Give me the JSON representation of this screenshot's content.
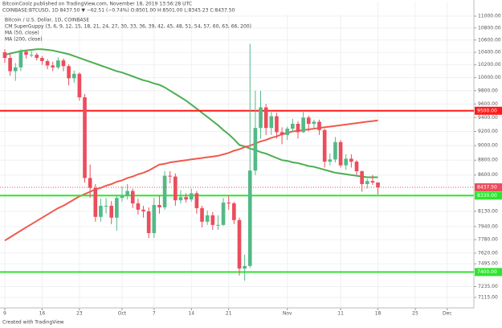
{
  "chart_data": {
    "type": "candlestick",
    "header": "BitcoinCoolz published on TradingView.com, November 18, 2019 13:56:28 UTC",
    "subheader": "COINBASE:BTCUSD, 1D 8437.50 ▼ −62.51 (−0.74%) O:8501.00 H:8501.00 L:8345.23 C:8437.50",
    "legend": [
      "Bitcoin / U.S. Dollar, 1D, COINBASE",
      "CM SuperGuppy (3, 6, 9, 12, 15, 18, 21, 24, 27, 30, 33, 36, 39, 42, 45, 48, 51, 54, 57, 60, 63, 66, 200)",
      "MA (50, close)",
      "MA (200, close)"
    ],
    "footer": "Created with TradingView",
    "up_color": "#53b987",
    "down_color": "#eb4d5c",
    "log_scale": true,
    "grid": true,
    "xlim": [
      -0.9,
      88
    ],
    "xticks": [
      {
        "value": 0,
        "label": "9"
      },
      {
        "value": 7,
        "label": "16"
      },
      {
        "value": 14,
        "label": "23"
      },
      {
        "value": 22,
        "label": "Oct"
      },
      {
        "value": 28,
        "label": "7"
      },
      {
        "value": 35,
        "label": "14"
      },
      {
        "value": 42,
        "label": "21"
      },
      {
        "value": 53,
        "label": "Nov"
      },
      {
        "value": 63,
        "label": "11"
      },
      {
        "value": 70,
        "label": "18"
      },
      {
        "value": 77,
        "label": "25"
      },
      {
        "value": 83,
        "label": "Dec"
      }
    ],
    "ylim": [
      7000,
      11250
    ],
    "yticks": [
      {
        "value": 11000,
        "label": "11000.00"
      },
      {
        "value": 10800,
        "label": "10800.00"
      },
      {
        "value": 10600,
        "label": "10600.00"
      },
      {
        "value": 10400,
        "label": "10400.00"
      },
      {
        "value": 10200,
        "label": "10200.00"
      },
      {
        "value": 10000,
        "label": "10000.00"
      },
      {
        "value": 9800,
        "label": "9800.00"
      },
      {
        "value": 9600,
        "label": "9600.00"
      },
      {
        "value": 9400,
        "label": "9400.00"
      },
      {
        "value": 9200,
        "label": "9200.00"
      },
      {
        "value": 9000,
        "label": "9000.00"
      },
      {
        "value": 8800,
        "label": "8800.00"
      },
      {
        "value": 8600,
        "label": "8600.00"
      },
      {
        "value": 8130,
        "label": "8130.00"
      },
      {
        "value": 7940,
        "label": "7940.00"
      },
      {
        "value": 7780,
        "label": "7780.00"
      },
      {
        "value": 7620,
        "label": "7620.00"
      },
      {
        "value": 7495,
        "label": "7495.00"
      },
      {
        "value": 7235,
        "label": "7235.00"
      },
      {
        "value": 7115,
        "label": "7115.00"
      }
    ],
    "levels": [
      {
        "value": 9500,
        "label": "9500.00",
        "color": "#ff1a1a"
      },
      {
        "value": 8330,
        "label": "8330.00",
        "color": "#2ee52e"
      },
      {
        "value": 7400,
        "label": "7400.00",
        "color": "#2ee52e"
      }
    ],
    "last": {
      "value": 8437.5,
      "label": "8437.50",
      "color": "#eb4d5c"
    },
    "open": [
      10400,
      10310,
      10100,
      10160,
      10410,
      10360,
      10360,
      10310,
      10260,
      10190,
      10160,
      10270,
      10180,
      9990,
      10060,
      9700,
      8560,
      8430,
      8060,
      8200,
      8200,
      8050,
      8300,
      8330,
      8390,
      8230,
      8150,
      8130,
      7860,
      8210,
      8180,
      8590,
      8580,
      8270,
      8310,
      8280,
      8360,
      8170,
      8000,
      8080,
      7960,
      7960,
      8240,
      8230,
      8020,
      7440,
      7470,
      8660,
      9250,
      9550,
      9250,
      9420,
      9190,
      9150,
      9240,
      9310,
      9190,
      9400,
      9310,
      9340,
      9220,
      8780,
      8810,
      9050,
      8730,
      8820,
      8780,
      8650,
      8480,
      8520,
      8501
    ],
    "high": [
      10450,
      10380,
      10230,
      10450,
      10440,
      10420,
      10390,
      10340,
      10290,
      10250,
      10320,
      10300,
      10210,
      10110,
      10080,
      9750,
      8740,
      8480,
      8290,
      8300,
      8260,
      8340,
      8450,
      8480,
      8420,
      8290,
      8200,
      8180,
      8300,
      8330,
      8650,
      8650,
      8620,
      8400,
      8360,
      8420,
      8390,
      8200,
      8140,
      8120,
      8080,
      8300,
      8330,
      8250,
      8050,
      7600,
      10540,
      9800,
      9800,
      9600,
      9500,
      9470,
      9260,
      9270,
      9380,
      9350,
      9500,
      9430,
      9370,
      9370,
      9240,
      8890,
      9120,
      9080,
      8880,
      8880,
      8800,
      8660,
      8550,
      8600,
      8501
    ],
    "low": [
      10230,
      10030,
      9950,
      10100,
      10300,
      10320,
      10270,
      10200,
      10130,
      10100,
      10130,
      10100,
      9880,
      9920,
      9650,
      8500,
      8300,
      8000,
      8000,
      8100,
      7970,
      7890,
      8250,
      8280,
      8170,
      8090,
      8050,
      7800,
      7800,
      8100,
      8150,
      8490,
      8200,
      8230,
      8240,
      8250,
      8100,
      7930,
      7960,
      7900,
      7900,
      7950,
      8150,
      7970,
      7360,
      7300,
      7450,
      8600,
      9100,
      9150,
      9150,
      9100,
      9020,
      9080,
      9200,
      9100,
      9180,
      9200,
      9230,
      9150,
      8700,
      8730,
      8770,
      8700,
      8670,
      8700,
      8600,
      8380,
      8420,
      8470,
      8345.23
    ],
    "close": [
      10310,
      10100,
      10160,
      10410,
      10360,
      10360,
      10310,
      10260,
      10190,
      10160,
      10270,
      10180,
      9990,
      10060,
      9700,
      8560,
      8430,
      8060,
      8200,
      8200,
      8050,
      8300,
      8330,
      8390,
      8230,
      8150,
      8130,
      7860,
      8210,
      8180,
      8590,
      8580,
      8270,
      8310,
      8280,
      8360,
      8170,
      8000,
      8080,
      7960,
      7960,
      8240,
      8230,
      8020,
      7440,
      7470,
      8660,
      9250,
      9550,
      9250,
      9420,
      9190,
      9150,
      9240,
      9310,
      9190,
      9400,
      9310,
      9340,
      9220,
      8780,
      8810,
      9050,
      8730,
      8820,
      8780,
      8650,
      8480,
      8520,
      8501,
      8437.5
    ],
    "series": [
      {
        "name": "MA (50, close)",
        "color": "#4caf50",
        "values": [
          10360,
          10380,
          10400,
          10420,
          10430,
          10440,
          10450,
          10450,
          10440,
          10430,
          10410,
          10390,
          10370,
          10340,
          10310,
          10280,
          10250,
          10220,
          10190,
          10160,
          10130,
          10100,
          10080,
          10050,
          10020,
          9990,
          9960,
          9940,
          9910,
          9890,
          9850,
          9800,
          9750,
          9700,
          9650,
          9590,
          9530,
          9470,
          9410,
          9350,
          9290,
          9220,
          9160,
          9090,
          9010,
          8990,
          8960,
          8940,
          8910,
          8890,
          8860,
          8830,
          8800,
          8790,
          8770,
          8760,
          8740,
          8720,
          8710,
          8690,
          8670,
          8650,
          8630,
          8620,
          8610,
          8600,
          8590,
          8580,
          8570,
          8570,
          8570
        ]
      },
      {
        "name": "MA (200, close)",
        "color": "#f05a4a",
        "values": [
          7770,
          7810,
          7850,
          7890,
          7930,
          7970,
          8010,
          8050,
          8090,
          8130,
          8170,
          8200,
          8240,
          8280,
          8320,
          8350,
          8380,
          8410,
          8430,
          8460,
          8480,
          8510,
          8530,
          8560,
          8580,
          8610,
          8630,
          8660,
          8700,
          8740,
          8750,
          8770,
          8780,
          8790,
          8800,
          8810,
          8820,
          8830,
          8840,
          8850,
          8860,
          8880,
          8900,
          8930,
          8950,
          8980,
          9000,
          9030,
          9060,
          9080,
          9110,
          9130,
          9160,
          9180,
          9200,
          9210,
          9220,
          9230,
          9240,
          9250,
          9260,
          9270,
          9280,
          9290,
          9300,
          9310,
          9320,
          9330,
          9340,
          9350,
          9360
        ]
      }
    ]
  }
}
